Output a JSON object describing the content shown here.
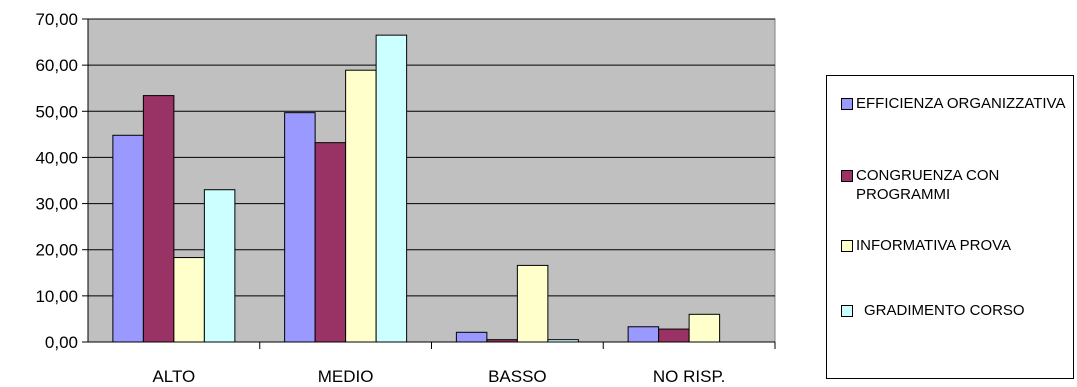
{
  "chart_data": {
    "type": "bar",
    "categories": [
      "ALTO",
      "MEDIO",
      "BASSO",
      "NO RISP."
    ],
    "series": [
      {
        "name": "EFFICIENZA ORGANIZZATIVA",
        "color": "#9999ff",
        "values": [
          44.8,
          49.7,
          2.1,
          3.3
        ]
      },
      {
        "name": "CONGRUENZA CON PROGRAMMI",
        "color": "#993366",
        "values": [
          53.4,
          43.2,
          0.5,
          2.8
        ]
      },
      {
        "name": "INFORMATIVA PROVA",
        "color": "#ffffcc",
        "values": [
          18.3,
          58.9,
          16.6,
          6.0
        ]
      },
      {
        "name": "GRADIMENTO CORSO",
        "color": "#ccffff",
        "values": [
          33.0,
          66.5,
          0.5,
          0.0
        ]
      }
    ],
    "ylim": [
      0,
      70
    ],
    "yticks": [
      "0,00",
      "10,00",
      "20,00",
      "30,00",
      "40,00",
      "50,00",
      "60,00",
      "70,00"
    ],
    "plot_background": "#c0c0c0",
    "grid": true,
    "legend_position": "right"
  },
  "legend": {
    "items": [
      {
        "label": "EFFICIENZA ORGANIZZATIVA",
        "color": "#9999ff"
      },
      {
        "label": "CONGRUENZA CON PROGRAMMI",
        "color": "#993366"
      },
      {
        "label": "INFORMATIVA PROVA",
        "color": "#ffffcc"
      },
      {
        "label": "GRADIMENTO CORSO",
        "color": "#ccffff"
      }
    ]
  }
}
